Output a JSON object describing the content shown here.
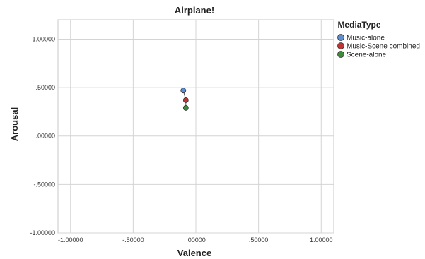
{
  "chart_data": {
    "type": "scatter",
    "title": "Airplane!",
    "xlabel": "Valence",
    "ylabel": "Arousal",
    "xlim": [
      -1.1,
      1.1
    ],
    "ylim": [
      -1.0,
      1.2
    ],
    "x_ticks": [
      -1,
      -0.5,
      0,
      0.5,
      1
    ],
    "x_tick_labels": [
      "-1.00000",
      "-.50000",
      ".00000",
      ".50000",
      "1.00000"
    ],
    "y_ticks": [
      -1,
      -0.5,
      0,
      0.5,
      1
    ],
    "y_tick_labels": [
      "-1.00000",
      "-.50000",
      ".00000",
      ".50000",
      "1.00000"
    ],
    "grid": true,
    "legend_title": "MediaType",
    "legend_position": "right",
    "series": [
      {
        "name": "Music-alone",
        "color": "#5b8ed6",
        "x": [
          -0.1
        ],
        "y": [
          0.47
        ]
      },
      {
        "name": "Music-Scene combined",
        "color": "#c03434",
        "x": [
          -0.08
        ],
        "y": [
          0.37
        ]
      },
      {
        "name": "Scene-alone",
        "color": "#3f8a3f",
        "x": [
          -0.08
        ],
        "y": [
          0.29
        ]
      }
    ]
  }
}
